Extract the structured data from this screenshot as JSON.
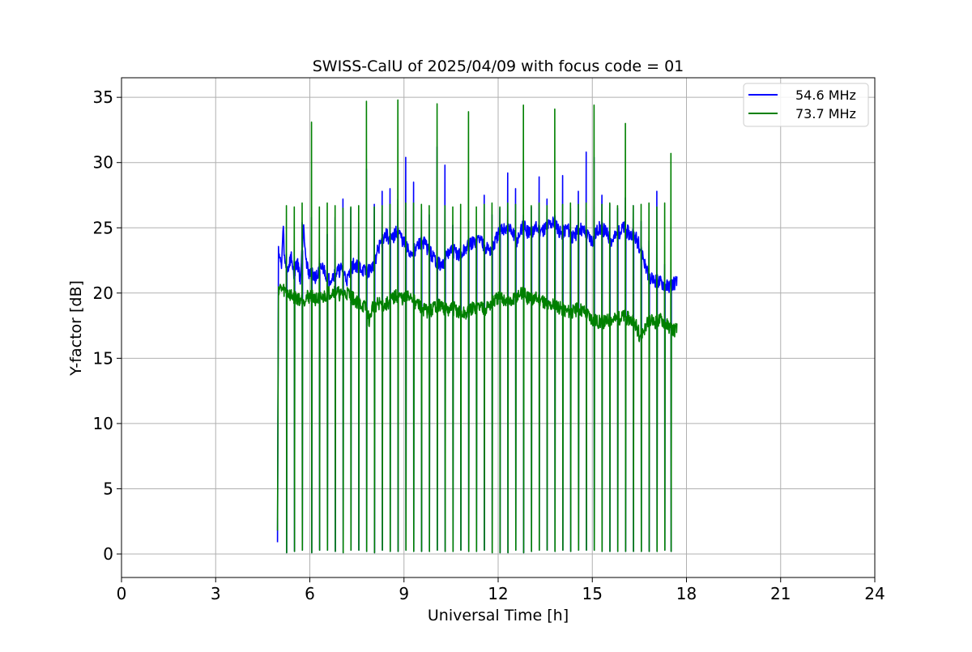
{
  "chart_data": {
    "type": "line",
    "title": "SWISS-CalU of 2025/04/09 with focus code = 01",
    "xlabel": "Universal Time [h]",
    "ylabel": "Y-factor [dB]",
    "xlim": [
      0,
      24
    ],
    "ylim": [
      -1.8,
      36.5
    ],
    "x_ticks": [
      0,
      3,
      6,
      9,
      12,
      15,
      18,
      21,
      24
    ],
    "x_tick_labels": [
      "0",
      "3",
      "6",
      "9",
      "12",
      "15",
      "18",
      "21",
      "24"
    ],
    "y_ticks": [
      0,
      5,
      10,
      15,
      20,
      25,
      30,
      35
    ],
    "y_tick_labels": [
      "0",
      "5",
      "10",
      "15",
      "20",
      "25",
      "30",
      "35"
    ],
    "grid": true,
    "legend_position": "top-right",
    "series": [
      {
        "name": "54.6 MHz",
        "color": "#0000ff",
        "x": [
          4.97,
          5.0,
          5.05,
          5.1,
          5.15,
          5.2,
          5.3,
          5.4,
          5.5,
          5.6,
          5.7,
          5.8,
          5.9,
          6.0,
          6.2,
          6.4,
          6.6,
          6.8,
          7.0,
          7.2,
          7.4,
          7.6,
          7.8,
          8.0,
          8.2,
          8.4,
          8.6,
          8.8,
          9.0,
          9.2,
          9.4,
          9.6,
          9.8,
          10.0,
          10.2,
          10.4,
          10.6,
          10.8,
          11.0,
          11.2,
          11.4,
          11.6,
          11.8,
          12.0,
          12.2,
          12.4,
          12.6,
          12.8,
          13.0,
          13.2,
          13.4,
          13.6,
          13.8,
          14.0,
          14.2,
          14.4,
          14.6,
          14.8,
          15.0,
          15.2,
          15.4,
          15.6,
          15.8,
          16.0,
          16.2,
          16.4,
          16.6,
          16.8,
          17.0,
          17.2,
          17.4,
          17.6,
          17.7
        ],
        "values": [
          0.9,
          23.5,
          22.5,
          22.0,
          25.1,
          22.2,
          21.8,
          22.8,
          21.5,
          22.5,
          21.0,
          25.4,
          22.0,
          21.5,
          21.2,
          22.0,
          21.0,
          21.5,
          21.8,
          21.0,
          22.2,
          22.0,
          21.5,
          22.0,
          23.5,
          24.5,
          24.0,
          24.8,
          23.8,
          23.0,
          23.5,
          24.0,
          23.2,
          22.5,
          22.0,
          23.0,
          23.2,
          22.8,
          23.5,
          23.8,
          24.2,
          23.5,
          23.2,
          24.5,
          25.0,
          24.8,
          24.0,
          25.2,
          24.5,
          25.0,
          24.8,
          25.2,
          25.5,
          24.5,
          25.0,
          24.2,
          25.0,
          24.6,
          24.0,
          25.0,
          24.8,
          24.0,
          24.5,
          25.0,
          24.5,
          24.2,
          23.0,
          21.0,
          21.0,
          20.8,
          20.5,
          20.8,
          20.8
        ]
      },
      {
        "name": "73.7 MHz",
        "color": "#008000",
        "x": [
          4.97,
          5.0,
          5.2,
          5.4,
          5.6,
          5.8,
          6.0,
          6.2,
          6.4,
          6.6,
          6.8,
          7.0,
          7.2,
          7.4,
          7.6,
          7.8,
          7.9,
          8.0,
          8.2,
          8.4,
          8.6,
          8.8,
          9.0,
          9.2,
          9.4,
          9.6,
          9.8,
          10.0,
          10.2,
          10.4,
          10.6,
          10.8,
          11.0,
          11.2,
          11.4,
          11.6,
          11.8,
          12.0,
          12.2,
          12.4,
          12.6,
          12.8,
          13.0,
          13.2,
          13.4,
          13.6,
          13.8,
          14.0,
          14.2,
          14.4,
          14.6,
          14.8,
          15.0,
          15.2,
          15.4,
          15.6,
          15.8,
          16.0,
          16.2,
          16.4,
          16.5,
          16.6,
          16.8,
          17.0,
          17.2,
          17.4,
          17.6,
          17.7
        ],
        "values": [
          1.8,
          20.4,
          20.2,
          19.8,
          19.6,
          19.5,
          19.8,
          19.5,
          19.6,
          20.0,
          20.2,
          19.8,
          20.0,
          19.5,
          19.2,
          18.8,
          17.8,
          19.0,
          19.2,
          19.0,
          19.5,
          19.8,
          19.5,
          19.8,
          19.2,
          18.8,
          18.5,
          19.0,
          19.0,
          18.6,
          18.8,
          18.4,
          18.4,
          18.8,
          19.0,
          18.8,
          19.2,
          19.6,
          19.5,
          19.2,
          19.8,
          20.0,
          19.5,
          19.6,
          19.5,
          19.0,
          19.2,
          18.8,
          18.6,
          18.6,
          18.8,
          18.5,
          18.0,
          17.8,
          17.8,
          18.0,
          18.0,
          18.2,
          18.0,
          17.5,
          16.8,
          17.0,
          17.8,
          17.8,
          18.0,
          17.5,
          17.2,
          17.2
        ]
      }
    ],
    "calibration_spikes": {
      "x": [
        5.0,
        5.25,
        5.5,
        5.75,
        6.05,
        6.3,
        6.55,
        6.8,
        7.05,
        7.3,
        7.55,
        7.8,
        8.05,
        8.3,
        8.55,
        8.8,
        9.05,
        9.3,
        9.55,
        9.8,
        10.05,
        10.3,
        10.55,
        10.8,
        11.05,
        11.3,
        11.55,
        11.8,
        12.05,
        12.3,
        12.55,
        12.8,
        13.05,
        13.3,
        13.55,
        13.8,
        14.05,
        14.3,
        14.55,
        14.8,
        15.05,
        15.3,
        15.55,
        15.8,
        16.05,
        16.3,
        16.55,
        16.8,
        17.05,
        17.3,
        17.5
      ],
      "green_peak": [
        26.9,
        26.7,
        26.6,
        26.9,
        33.1,
        26.6,
        26.9,
        26.7,
        26.5,
        26.6,
        26.7,
        34.7,
        26.6,
        26.7,
        26.8,
        34.8,
        26.9,
        26.9,
        26.8,
        26.7,
        34.5,
        26.7,
        26.6,
        26.8,
        33.9,
        26.6,
        26.8,
        26.9,
        26.6,
        26.9,
        26.8,
        34.4,
        26.7,
        26.9,
        26.7,
        34.1,
        26.8,
        26.9,
        26.8,
        26.9,
        34.4,
        26.8,
        26.9,
        26.7,
        33.0,
        26.7,
        26.8,
        26.9,
        26.6,
        26.9,
        30.7
      ],
      "blue_peak": [
        25.1,
        23.0,
        22.8,
        25.4,
        25.8,
        22.8,
        24.5,
        25.8,
        27.2,
        26.5,
        25.4,
        29.5,
        26.8,
        27.8,
        28.0,
        27.2,
        30.4,
        28.5,
        26.4,
        26.0,
        31.2,
        29.8,
        25.2,
        24.0,
        25.5,
        24.0,
        27.5,
        26.0,
        26.5,
        29.2,
        28.0,
        26.0,
        26.6,
        28.9,
        27.2,
        26.0,
        29.0,
        26.5,
        27.8,
        30.8,
        30.4,
        27.5,
        26.8,
        26.5,
        27.3,
        26.7,
        25.5,
        24.0,
        27.8,
        22.2,
        21.0
      ],
      "low": [
        0.1,
        0.1,
        0.2,
        0.3,
        0.1,
        0.3,
        0.3,
        0.2,
        0.1,
        0.3,
        0.3,
        0.2,
        0.1,
        0.3,
        0.2,
        0.2,
        0.3,
        0.2,
        0.2,
        0.2,
        0.3,
        0.2,
        0.2,
        0.3,
        0.2,
        0.2,
        0.3,
        0.1,
        0.1,
        0.1,
        0.3,
        0.1,
        0.2,
        0.3,
        0.3,
        0.2,
        0.3,
        0.2,
        0.3,
        0.3,
        0.3,
        0.2,
        0.2,
        0.2,
        0.2,
        0.2,
        0.2,
        0.2,
        0.2,
        0.3,
        0.2
      ]
    }
  }
}
